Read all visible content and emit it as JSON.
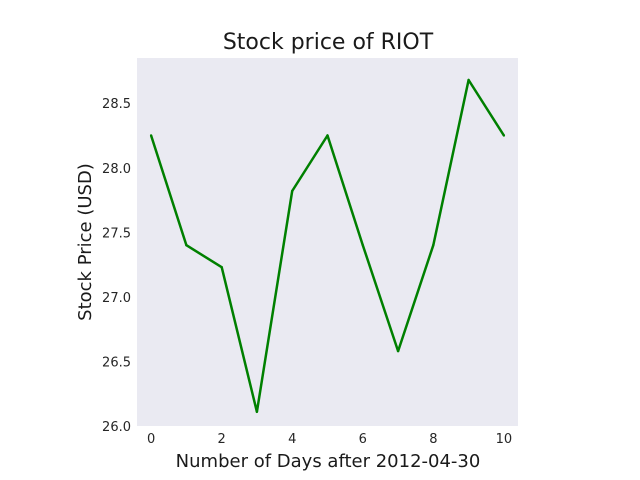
{
  "chart_data": {
    "type": "line",
    "title": "Stock price of RIOT",
    "xlabel": "Number of Days after 2012-04-30",
    "ylabel": "Stock Price (USD)",
    "x": [
      0,
      1,
      2,
      3,
      4,
      5,
      6,
      7,
      8,
      9,
      10
    ],
    "series": [
      {
        "values": [
          28.25,
          27.4,
          27.23,
          26.11,
          27.82,
          28.25,
          27.4,
          26.58,
          27.4,
          28.68,
          28.25
        ],
        "color": "#008000"
      }
    ],
    "xlim": [
      -0.4,
      10.4
    ],
    "ylim": [
      26.0,
      28.85
    ],
    "x_ticks": [
      "0",
      "2",
      "4",
      "6",
      "8",
      "10"
    ],
    "y_ticks": [
      "26.0",
      "26.5",
      "27.0",
      "27.5",
      "28.0",
      "28.5"
    ],
    "grid": false,
    "plot_background": "#eaeaf2"
  }
}
